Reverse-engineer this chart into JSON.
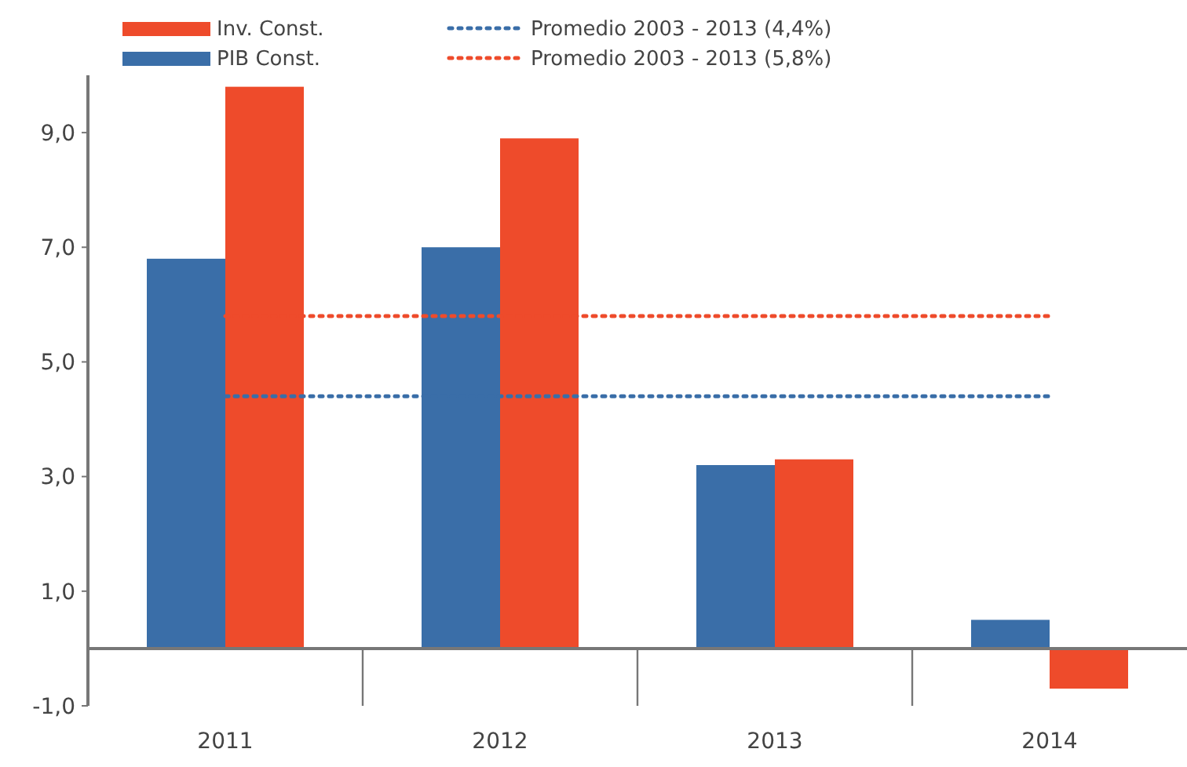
{
  "chart_data": {
    "type": "bar",
    "categories": [
      "2011",
      "2012",
      "2013",
      "2014"
    ],
    "series": [
      {
        "name": "PIB Const.",
        "color": "#3a6ea8",
        "values": [
          6.8,
          7.0,
          3.2,
          0.5
        ]
      },
      {
        "name": "Inv. Const.",
        "color": "#ee4b2b",
        "values": [
          9.8,
          8.9,
          3.3,
          -0.7
        ]
      }
    ],
    "ylim": [
      -1,
      10
    ],
    "yticks": [
      {
        "value": -1,
        "label": "-1,0"
      },
      {
        "value": 1,
        "label": "1,0"
      },
      {
        "value": 3,
        "label": "3,0"
      },
      {
        "value": 5,
        "label": "5,0"
      },
      {
        "value": 7,
        "label": "7,0"
      },
      {
        "value": 9,
        "label": "9,0"
      }
    ],
    "ref_lines": [
      {
        "axis": "y",
        "value": 4.4,
        "label": "Promedio 2003 - 2013 (4,4%)",
        "color": "#3a6ea8",
        "line_style": "dotted"
      },
      {
        "axis": "y",
        "value": 5.8,
        "label": "Promedio 2003 - 2013 (5,8%)",
        "color": "#ee4b2b",
        "line_style": "dotted"
      }
    ],
    "legend": "top left",
    "grid": false
  }
}
